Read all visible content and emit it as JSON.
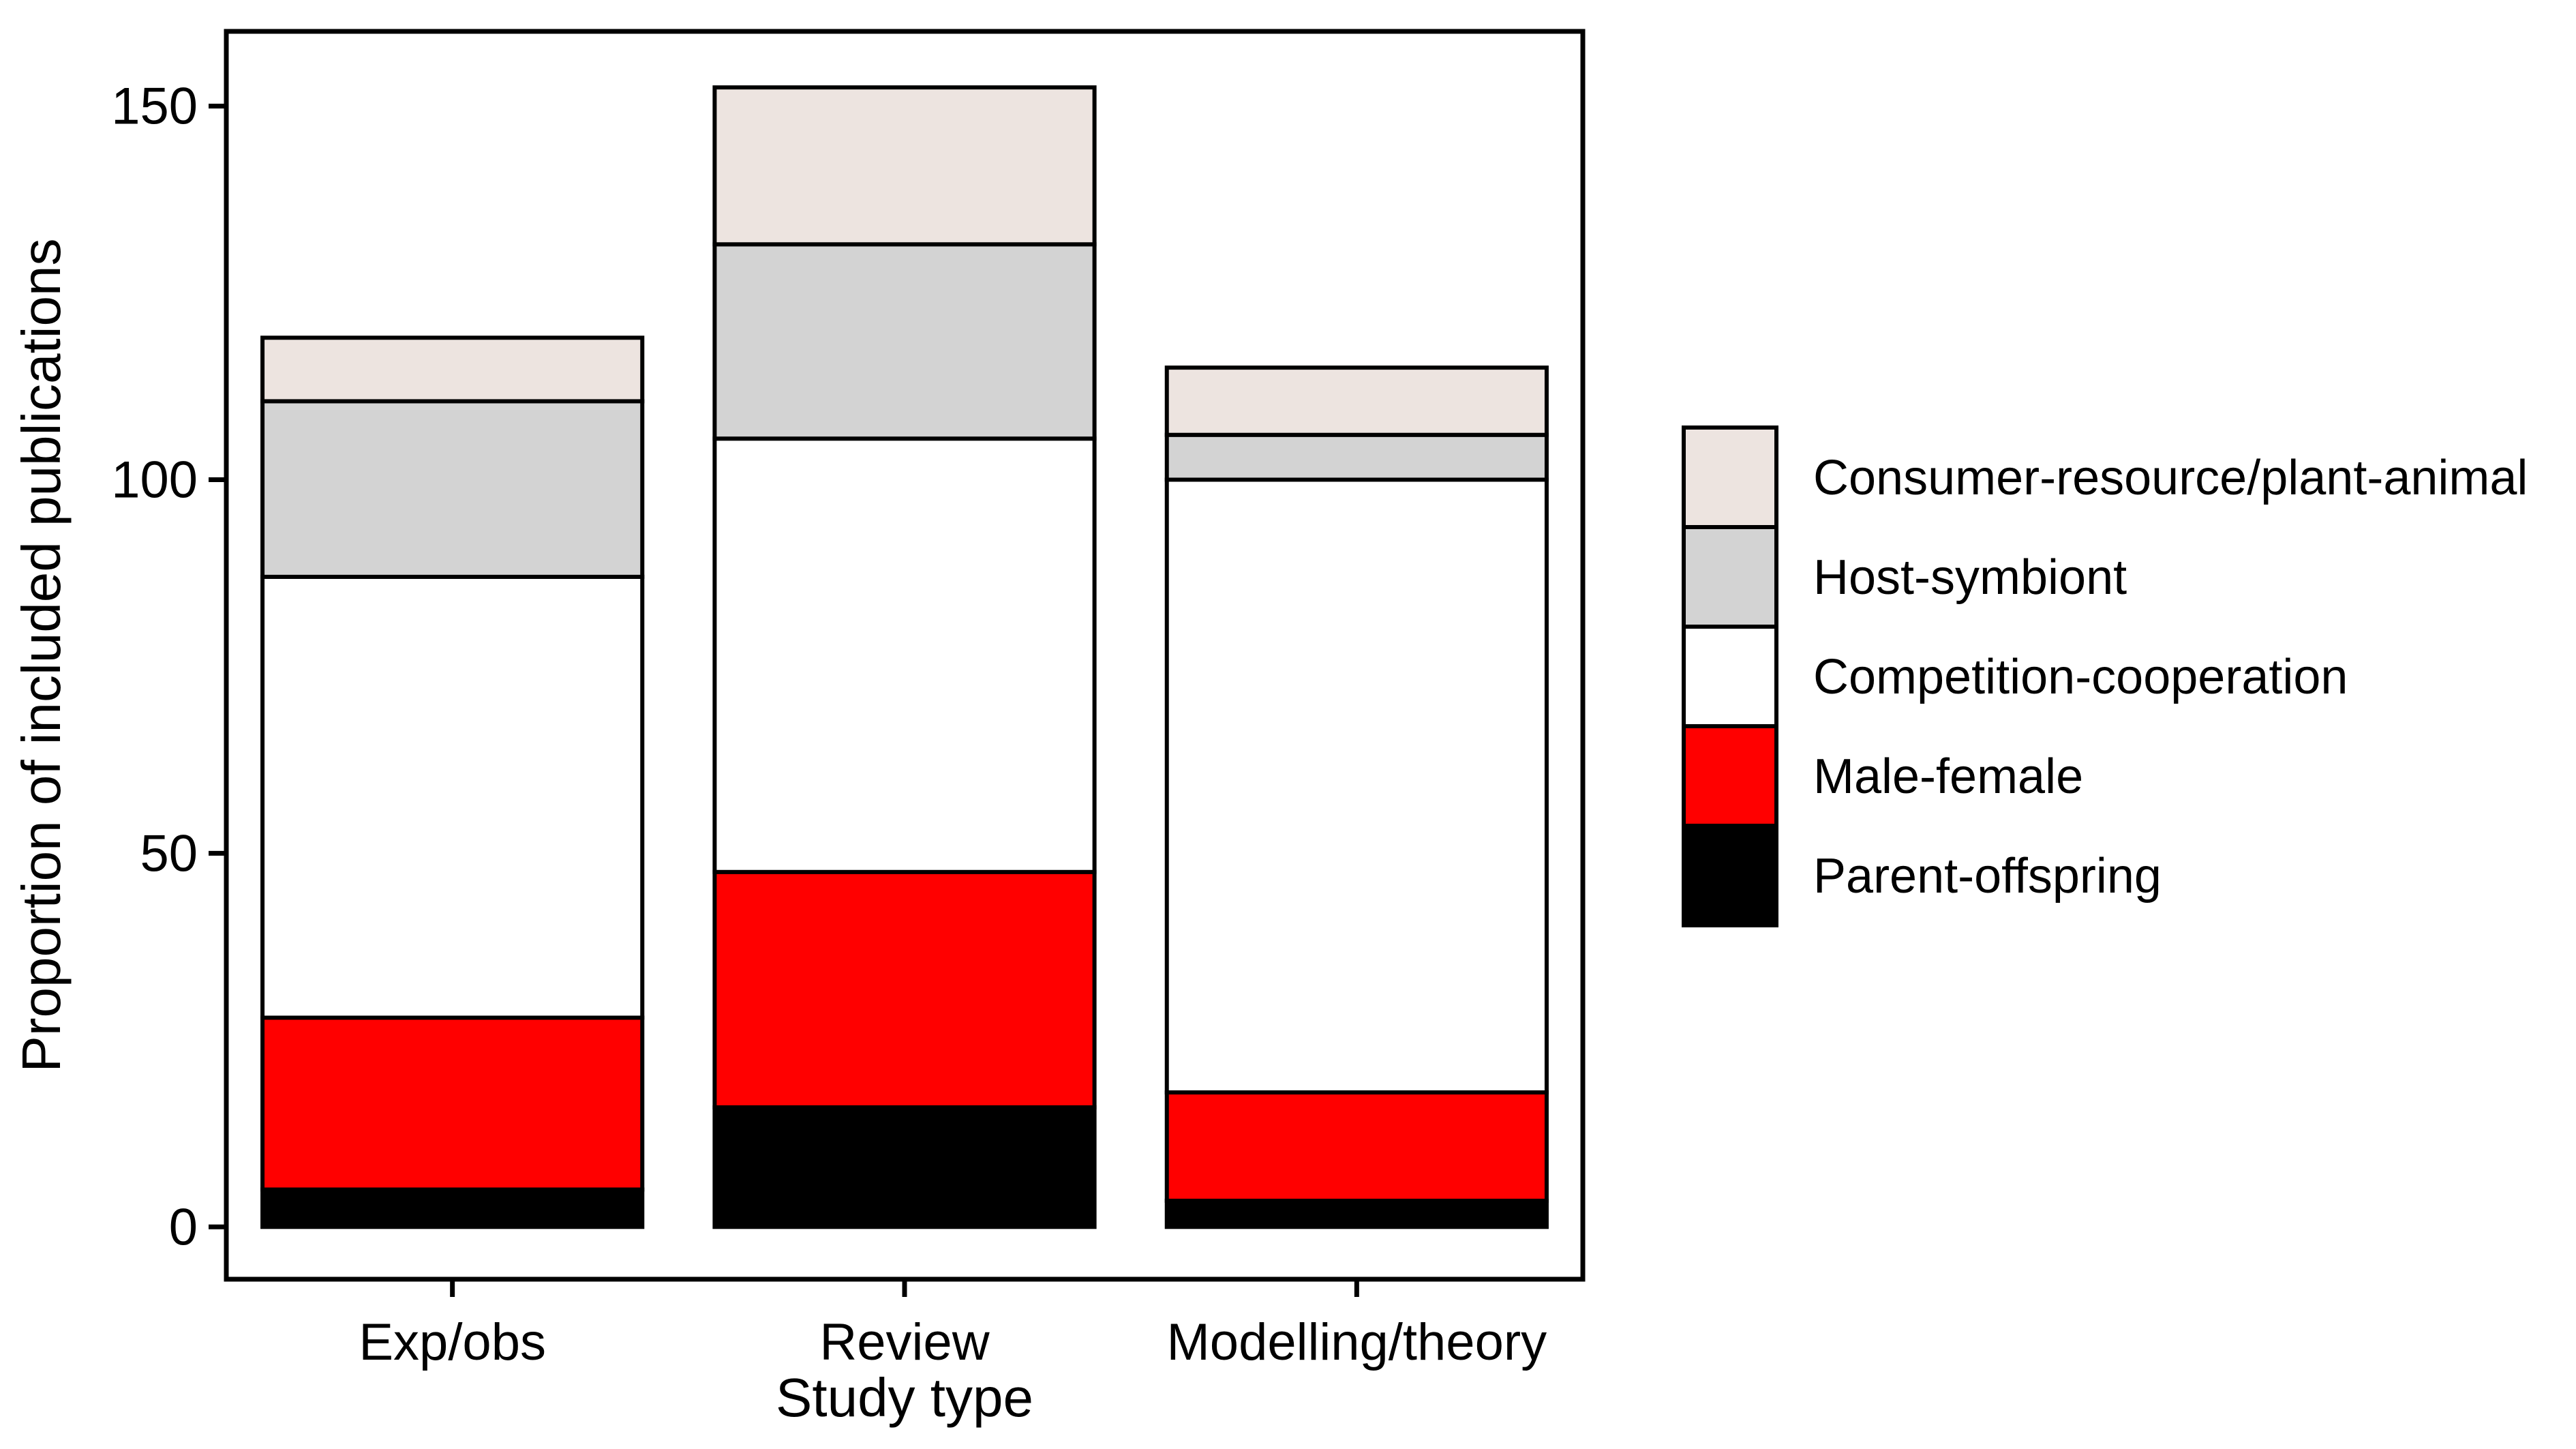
{
  "chart_data": {
    "type": "bar",
    "stacked": true,
    "title": "",
    "xlabel": "Study type",
    "ylabel": "Proportion of included publications",
    "categories": [
      "Exp/obs",
      "Review",
      "Modelling/theory"
    ],
    "yticks": [
      0,
      50,
      100,
      150
    ],
    "ylim": [
      -7,
      160
    ],
    "grid": false,
    "legend_position": "right",
    "series": [
      {
        "name": "Parent-offspring",
        "color": "#000000",
        "values": [
          5,
          16,
          3.5
        ]
      },
      {
        "name": "Male-female",
        "color": "#ff0000",
        "values": [
          23,
          31.5,
          14.5
        ]
      },
      {
        "name": "Competition-cooperation",
        "color": "#ffffff",
        "values": [
          59,
          58,
          82
        ]
      },
      {
        "name": "Host-symbiont",
        "color": "#d3d3d3",
        "values": [
          23.5,
          26,
          6
        ]
      },
      {
        "name": "Consumer-resource/plant-animal",
        "color": "#ede4e0",
        "values": [
          8.5,
          21,
          9
        ]
      }
    ],
    "legend_order": [
      "Consumer-resource/plant-animal",
      "Host-symbiont",
      "Competition-cooperation",
      "Male-female",
      "Parent-offspring"
    ]
  }
}
